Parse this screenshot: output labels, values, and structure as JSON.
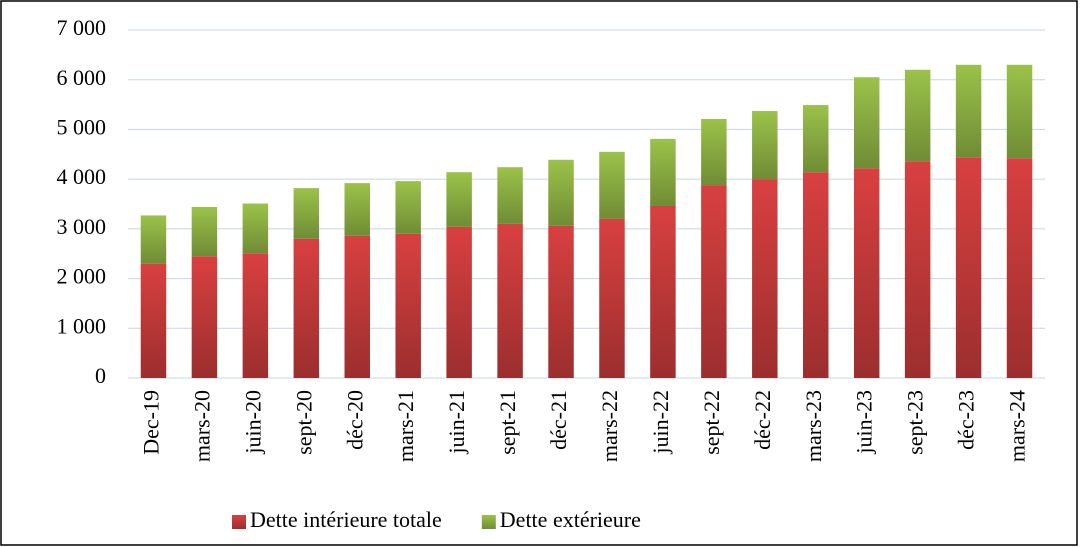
{
  "chart_data": {
    "type": "stacked-bar",
    "categories": [
      "Dec-19",
      "mars-20",
      "juin-20",
      "sept-20",
      "déc-20",
      "mars-21",
      "juin-21",
      "sept-21",
      "déc-21",
      "mars-22",
      "juin-22",
      "sept-22",
      "déc-22",
      "mars-23",
      "juin-23",
      "sept-23",
      "déc-23",
      "mars-24"
    ],
    "series": [
      {
        "name": "Dette intérieure totale",
        "color": "#d94040",
        "values": [
          2300,
          2450,
          2510,
          2800,
          2860,
          2900,
          3040,
          3100,
          3060,
          3200,
          3460,
          3880,
          4000,
          4140,
          4220,
          4360,
          4440,
          4420
        ]
      },
      {
        "name": "Dette extérieure",
        "color": "#9bc24a",
        "values": [
          970,
          990,
          1000,
          1020,
          1060,
          1060,
          1100,
          1140,
          1330,
          1350,
          1350,
          1330,
          1370,
          1350,
          1830,
          1840,
          1860,
          1880
        ]
      }
    ],
    "ylim": [
      0,
      7000
    ],
    "yticks": [
      0,
      {
        "value": 1000,
        "label": "1 000"
      },
      {
        "value": 2000,
        "label": "2 000"
      },
      {
        "value": 3000,
        "label": "3 000"
      },
      {
        "value": 4000,
        "label": "4 000"
      },
      {
        "value": 5000,
        "label": "5 000"
      },
      {
        "value": 6000,
        "label": "6 000"
      },
      {
        "value": 7000,
        "label": "7 000"
      }
    ],
    "grid": true,
    "legend": "bottom"
  }
}
